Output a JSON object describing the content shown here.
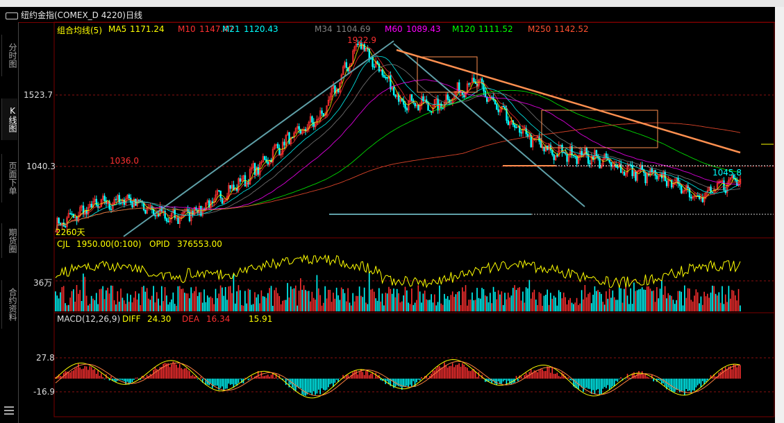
{
  "window": {
    "title": "纽约金指(COMEX_D 4220)日线"
  },
  "nav_tabs": [
    {
      "label": "分时图",
      "active": false
    },
    {
      "label": "K线图",
      "active": true
    },
    {
      "label": "页面下单",
      "active": false
    },
    {
      "label": "期货圈",
      "active": false
    },
    {
      "label": "合约资料",
      "active": false
    }
  ],
  "main_legend": {
    "name": "组合均线(5)",
    "items": [
      {
        "label": "MA5",
        "value": "1171.24",
        "color": "#ffff00"
      },
      {
        "label": "M10",
        "value": "1147.47",
        "color": "#ff3030"
      },
      {
        "label": "M21",
        "value": "1120.43",
        "color": "#00ffff"
      },
      {
        "label": "M34",
        "value": "1104.69",
        "color": "#808080"
      },
      {
        "label": "M60",
        "value": "1089.43",
        "color": "#ff00ff"
      },
      {
        "label": "M120",
        "value": "1111.52",
        "color": "#00ff00"
      },
      {
        "label": "M250",
        "value": "1142.52",
        "color": "#ff5030"
      }
    ]
  },
  "price_axis": {
    "ticks": [
      "1523.7",
      "1040.3"
    ]
  },
  "annotations": {
    "high": "1922.9",
    "local_high": "1036.0",
    "low": "1045.8",
    "bottom_left": "2260天"
  },
  "vol_legend": {
    "name": "CJL",
    "value": "1950.00(0:100)",
    "opid_label": "OPID",
    "opid_value": "376553.00"
  },
  "vol_axis": {
    "ticks": [
      "36万"
    ]
  },
  "macd_legend": {
    "name": "MACD(12,26,9)",
    "diff_label": "DIFF",
    "diff_value": "24.30",
    "dea_label": "DEA",
    "dea_value": "16.34",
    "macd_value": "15.91"
  },
  "macd_axis": {
    "ticks": [
      "27.8",
      "-16.9"
    ]
  },
  "chart_data": {
    "type": "line",
    "title": "纽约金指(COMEX_D 4220)日线",
    "series": [
      {
        "name": "MA5",
        "values": [
          880,
          1000,
          1036,
          920,
          1000,
          1150,
          1350,
          1500,
          1922.9,
          1600,
          1550,
          1700,
          1450,
          1300,
          1280,
          1200,
          1150,
          1045.8,
          1171.24
        ]
      }
    ],
    "ylim": [
      850,
      1950
    ]
  }
}
